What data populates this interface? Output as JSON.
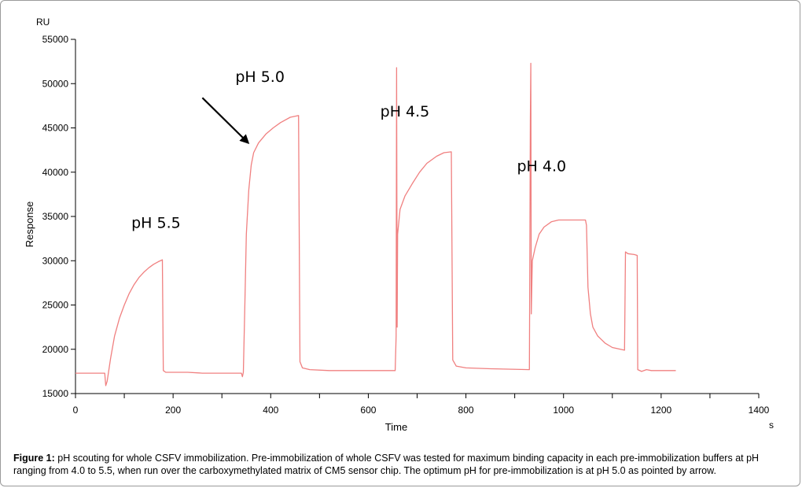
{
  "chart_data": {
    "type": "line",
    "unit_label": "RU",
    "ylabel": "Response",
    "xlabel": "Time",
    "x_unit": "s",
    "xlim": [
      0,
      1400
    ],
    "ylim": [
      15000,
      55000
    ],
    "x_ticks": [
      0,
      200,
      400,
      600,
      800,
      1000,
      1200,
      1400
    ],
    "y_ticks": [
      15000,
      20000,
      25000,
      30000,
      35000,
      40000,
      45000,
      50000,
      55000
    ],
    "grid": false,
    "line_color": "#f08080",
    "series": [
      {
        "points": [
          [
            0,
            17300
          ],
          [
            60,
            17300
          ],
          [
            62,
            15900
          ],
          [
            65,
            16400
          ],
          [
            72,
            19000
          ],
          [
            80,
            21500
          ],
          [
            90,
            23500
          ],
          [
            100,
            25000
          ],
          [
            110,
            26300
          ],
          [
            120,
            27300
          ],
          [
            130,
            28100
          ],
          [
            140,
            28700
          ],
          [
            150,
            29200
          ],
          [
            160,
            29600
          ],
          [
            170,
            29900
          ],
          [
            178,
            30100
          ],
          [
            180,
            17600
          ],
          [
            185,
            17400
          ],
          [
            230,
            17400
          ],
          [
            260,
            17300
          ],
          [
            300,
            17300
          ],
          [
            340,
            17300
          ],
          [
            342,
            16900
          ],
          [
            344,
            17400
          ],
          [
            347,
            25000
          ],
          [
            350,
            33000
          ],
          [
            355,
            38000
          ],
          [
            360,
            40800
          ],
          [
            365,
            42200
          ],
          [
            375,
            43300
          ],
          [
            390,
            44300
          ],
          [
            405,
            45000
          ],
          [
            420,
            45600
          ],
          [
            440,
            46200
          ],
          [
            457,
            46400
          ],
          [
            460,
            18600
          ],
          [
            465,
            17900
          ],
          [
            480,
            17700
          ],
          [
            520,
            17600
          ],
          [
            600,
            17600
          ],
          [
            655,
            17600
          ],
          [
            657,
            21500
          ],
          [
            658,
            51800
          ],
          [
            659,
            22500
          ],
          [
            660,
            33000
          ],
          [
            665,
            35800
          ],
          [
            675,
            37300
          ],
          [
            690,
            38700
          ],
          [
            705,
            40000
          ],
          [
            720,
            41000
          ],
          [
            740,
            41800
          ],
          [
            755,
            42200
          ],
          [
            770,
            42300
          ],
          [
            773,
            18800
          ],
          [
            780,
            18100
          ],
          [
            800,
            17900
          ],
          [
            850,
            17800
          ],
          [
            930,
            17700
          ],
          [
            932,
            45700
          ],
          [
            933,
            52300
          ],
          [
            934,
            24000
          ],
          [
            936,
            30000
          ],
          [
            942,
            31500
          ],
          [
            950,
            33000
          ],
          [
            960,
            33800
          ],
          [
            975,
            34400
          ],
          [
            990,
            34600
          ],
          [
            1045,
            34600
          ],
          [
            1047,
            34000
          ],
          [
            1050,
            27000
          ],
          [
            1055,
            24000
          ],
          [
            1060,
            22500
          ],
          [
            1070,
            21500
          ],
          [
            1085,
            20700
          ],
          [
            1100,
            20200
          ],
          [
            1125,
            19900
          ],
          [
            1127,
            31000
          ],
          [
            1132,
            30800
          ],
          [
            1145,
            30700
          ],
          [
            1151,
            30600
          ],
          [
            1152,
            17700
          ],
          [
            1160,
            17500
          ],
          [
            1170,
            17700
          ],
          [
            1180,
            17600
          ],
          [
            1200,
            17600
          ],
          [
            1230,
            17600
          ]
        ]
      }
    ],
    "annotations": [
      {
        "text": "pH 5.5",
        "x": 165,
        "y": 33700
      },
      {
        "text": "pH 5.0",
        "x": 378,
        "y": 50200
      },
      {
        "text": "pH 4.5",
        "x": 675,
        "y": 46300
      },
      {
        "text": "pH 4.0",
        "x": 955,
        "y": 40100
      }
    ],
    "arrow": {
      "from": [
        260,
        48400
      ],
      "to": [
        354,
        43300
      ]
    }
  },
  "caption": {
    "label": "Figure 1:",
    "text": " pH scouting for whole CSFV immobilization. Pre-immobilization of whole CSFV was tested for maximum binding capacity in each pre-immobilization buffers at pH ranging from 4.0 to 5.5, when run over the carboxymethylated matrix of CM5 sensor chip. The optimum pH for pre-immobilization is at pH 5.0 as pointed by arrow."
  }
}
